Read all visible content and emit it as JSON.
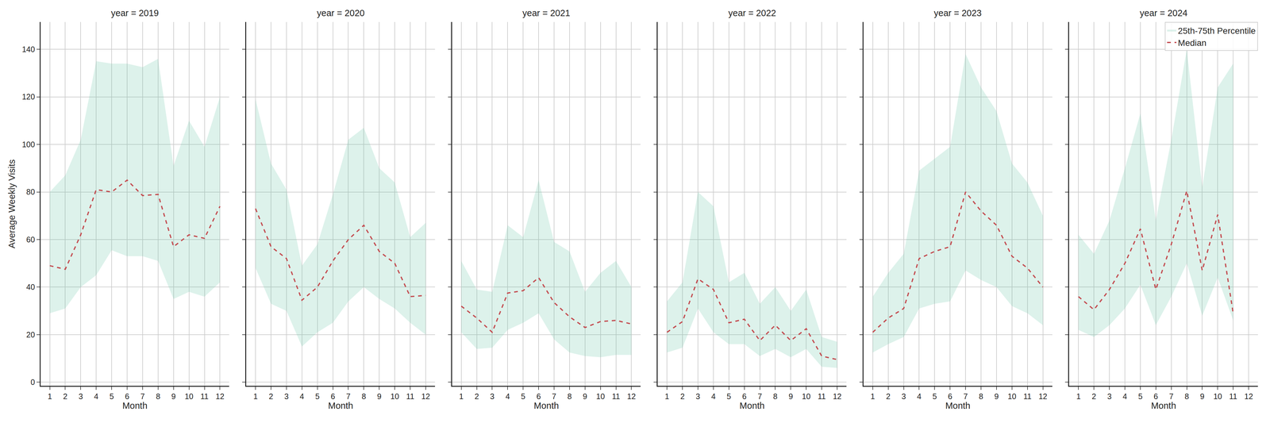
{
  "chart_data": [
    {
      "type": "line",
      "title": "year = 2019",
      "x_label": "Month",
      "y_label": "Average Weekly Visits",
      "x": [
        1,
        2,
        3,
        4,
        5,
        6,
        7,
        8,
        9,
        10,
        11,
        12
      ],
      "xlim": [
        0.4,
        12.6
      ],
      "xticks": [
        1,
        2,
        3,
        4,
        5,
        6,
        7,
        8,
        9,
        10,
        11,
        12
      ],
      "ylim": [
        -1.5,
        151.5
      ],
      "yticks": [
        0,
        20,
        40,
        60,
        80,
        100,
        120,
        140
      ],
      "grid": true,
      "series": [
        {
          "type": "band",
          "color": "#66c2a5",
          "lower": [
            29,
            31,
            40,
            45,
            55.5,
            53,
            53,
            51,
            35,
            38,
            36,
            42
          ],
          "upper": [
            80,
            87,
            102,
            135,
            134,
            134,
            132.5,
            136,
            91,
            110,
            99,
            120
          ]
        },
        {
          "type": "line",
          "color": "#c44e52",
          "line_style": "dashed",
          "values": [
            49,
            47.5,
            62,
            81,
            80,
            85,
            78.5,
            79,
            57,
            62,
            60.5,
            74
          ]
        }
      ]
    },
    {
      "type": "line",
      "title": "year = 2020",
      "x_label": "Month",
      "x": [
        1,
        2,
        3,
        4,
        5,
        6,
        7,
        8,
        9,
        10,
        11,
        12
      ],
      "xlim": [
        0.4,
        12.6
      ],
      "xticks": [
        1,
        2,
        3,
        4,
        5,
        6,
        7,
        8,
        9,
        10,
        11,
        12
      ],
      "ylim": [
        -1.5,
        151.5
      ],
      "yticks": [
        0,
        20,
        40,
        60,
        80,
        100,
        120,
        140
      ],
      "grid": true,
      "tick_labels": "x",
      "series": [
        {
          "type": "band",
          "color": "#66c2a5",
          "lower": [
            48,
            33,
            30,
            15,
            21,
            25,
            34,
            40,
            35,
            31,
            25,
            20
          ],
          "upper": [
            119,
            92,
            81,
            49,
            58,
            79,
            102,
            107,
            90,
            84,
            61,
            67
          ]
        },
        {
          "type": "line",
          "color": "#c44e52",
          "line_style": "dashed",
          "values": [
            73,
            57,
            52,
            34.5,
            40,
            51,
            60,
            66,
            55,
            50,
            36,
            36.5
          ]
        }
      ]
    },
    {
      "type": "line",
      "title": "year = 2021",
      "x_label": "Month",
      "x": [
        1,
        2,
        3,
        4,
        5,
        6,
        7,
        8,
        9,
        10,
        11,
        12
      ],
      "xlim": [
        0.4,
        12.6
      ],
      "xticks": [
        1,
        2,
        3,
        4,
        5,
        6,
        7,
        8,
        9,
        10,
        11,
        12
      ],
      "ylim": [
        -1.5,
        151.5
      ],
      "yticks": [
        0,
        20,
        40,
        60,
        80,
        100,
        120,
        140
      ],
      "grid": true,
      "tick_labels": "x",
      "series": [
        {
          "type": "band",
          "color": "#66c2a5",
          "lower": [
            21,
            14,
            14.5,
            22,
            25,
            29,
            18,
            12.5,
            11,
            10.5,
            11.5,
            11.5
          ],
          "upper": [
            51,
            39,
            38,
            66,
            61,
            85,
            59,
            55,
            38,
            46,
            51,
            40
          ]
        },
        {
          "type": "line",
          "color": "#c44e52",
          "line_style": "dashed",
          "values": [
            32,
            27,
            21,
            37.5,
            38.5,
            44,
            33.5,
            27.5,
            23,
            25.5,
            26,
            24.5
          ]
        }
      ]
    },
    {
      "type": "line",
      "title": "year = 2022",
      "x_label": "Month",
      "x": [
        1,
        2,
        3,
        4,
        5,
        6,
        7,
        8,
        9,
        10,
        11,
        12
      ],
      "xlim": [
        0.4,
        12.6
      ],
      "xticks": [
        1,
        2,
        3,
        4,
        5,
        6,
        7,
        8,
        9,
        10,
        11,
        12
      ],
      "ylim": [
        -1.5,
        151.5
      ],
      "yticks": [
        0,
        20,
        40,
        60,
        80,
        100,
        120,
        140
      ],
      "grid": true,
      "tick_labels": "x",
      "series": [
        {
          "type": "band",
          "color": "#66c2a5",
          "lower": [
            12.5,
            14.5,
            31,
            21,
            16,
            16,
            11,
            14,
            10.5,
            14,
            6.5,
            6
          ],
          "upper": [
            34,
            42,
            80,
            74,
            42,
            46,
            33,
            40,
            30,
            39,
            19,
            17
          ]
        },
        {
          "type": "line",
          "color": "#c44e52",
          "line_style": "dashed",
          "values": [
            21,
            25.5,
            43.5,
            39,
            25,
            26.5,
            17.5,
            24,
            17.5,
            22.5,
            11,
            9.5
          ]
        }
      ]
    },
    {
      "type": "line",
      "title": "year = 2023",
      "x_label": "Month",
      "x": [
        1,
        2,
        3,
        4,
        5,
        6,
        7,
        8,
        9,
        10,
        11,
        12
      ],
      "xlim": [
        0.4,
        12.6
      ],
      "xticks": [
        1,
        2,
        3,
        4,
        5,
        6,
        7,
        8,
        9,
        10,
        11,
        12
      ],
      "ylim": [
        -1.5,
        151.5
      ],
      "yticks": [
        0,
        20,
        40,
        60,
        80,
        100,
        120,
        140
      ],
      "grid": true,
      "tick_labels": "x",
      "series": [
        {
          "type": "band",
          "color": "#66c2a5",
          "lower": [
            12.5,
            16,
            19,
            31,
            33,
            34,
            47,
            43,
            40,
            32,
            29,
            24
          ],
          "upper": [
            36,
            46,
            54,
            89,
            94,
            99,
            138,
            124,
            114,
            92,
            84,
            70
          ]
        },
        {
          "type": "line",
          "color": "#c44e52",
          "line_style": "dashed",
          "values": [
            21,
            27,
            31,
            52,
            55,
            57,
            80,
            72,
            66,
            53,
            48,
            40
          ]
        }
      ]
    },
    {
      "type": "line",
      "title": "year = 2024",
      "x_label": "Month",
      "x": [
        1,
        2,
        3,
        4,
        5,
        6,
        7,
        8,
        9,
        10,
        11
      ],
      "xlim": [
        0.4,
        12.6
      ],
      "xticks": [
        1,
        2,
        3,
        4,
        5,
        6,
        7,
        8,
        9,
        10,
        11,
        12
      ],
      "ylim": [
        -1.5,
        151.5
      ],
      "yticks": [
        0,
        20,
        40,
        60,
        80,
        100,
        120,
        140
      ],
      "grid": true,
      "tick_labels": "x",
      "legend": "upper right",
      "series": [
        {
          "type": "band",
          "name": "25th-75th Percentile",
          "color": "#66c2a5",
          "lower": [
            22,
            19,
            24,
            31,
            41,
            24,
            36,
            50,
            28,
            44,
            26
          ],
          "upper": [
            62,
            54,
            68,
            90,
            113,
            68,
            102,
            140,
            82,
            124,
            134
          ]
        },
        {
          "type": "line",
          "name": "Median",
          "color": "#c44e52",
          "line_style": "dashed",
          "values": [
            36,
            30.5,
            39,
            50,
            64.5,
            39,
            58,
            80.5,
            47,
            70.5,
            29
          ]
        }
      ]
    }
  ]
}
